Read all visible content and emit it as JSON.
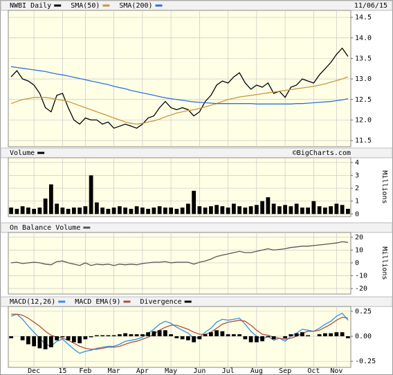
{
  "chart_data": [
    {
      "type": "line",
      "date_label": "11/06/15",
      "ylim": [
        11.35,
        14.67
      ],
      "yticks": [
        11.5,
        {
          "value": 12,
          "label": "12.0"
        },
        12.5,
        {
          "value": 13,
          "label": "13.0"
        },
        13.5,
        {
          "value": 14,
          "label": "14.0"
        },
        14.5
      ],
      "grid": true,
      "series": [
        {
          "name": "NWBI Daily",
          "color": "#000000",
          "values": [
            13.05,
            13.2,
            13.0,
            12.95,
            12.85,
            12.65,
            12.3,
            12.2,
            12.6,
            12.65,
            12.3,
            12.0,
            11.9,
            12.05,
            12.0,
            12.0,
            11.9,
            11.95,
            11.8,
            11.85,
            11.9,
            11.85,
            11.8,
            11.9,
            12.05,
            12.1,
            12.3,
            12.45,
            12.3,
            12.25,
            12.3,
            12.25,
            12.1,
            12.2,
            12.45,
            12.6,
            12.85,
            12.95,
            12.9,
            13.05,
            13.15,
            12.9,
            12.75,
            12.85,
            12.8,
            12.9,
            12.65,
            12.7,
            12.55,
            12.8,
            12.85,
            13.0,
            12.95,
            12.9,
            13.1,
            13.25,
            13.4,
            13.6,
            13.75,
            13.55
          ]
        },
        {
          "name": "SMA(50)",
          "color": "#c8963c",
          "values": [
            12.4,
            12.45,
            12.5,
            12.52,
            12.55,
            12.55,
            12.55,
            12.53,
            12.5,
            12.48,
            12.45,
            12.4,
            12.35,
            12.3,
            12.25,
            12.2,
            12.15,
            12.1,
            12.05,
            12.0,
            11.95,
            11.92,
            11.9,
            11.92,
            11.95,
            11.98,
            12.02,
            12.08,
            12.12,
            12.17,
            12.2,
            12.23,
            12.25,
            12.28,
            12.32,
            12.36,
            12.4,
            12.45,
            12.5,
            12.53,
            12.56,
            12.58,
            12.6,
            12.62,
            12.64,
            12.66,
            12.68,
            12.7,
            12.72,
            12.74,
            12.76,
            12.78,
            12.8,
            12.82,
            12.85,
            12.88,
            12.92,
            12.96,
            13.0,
            13.05
          ]
        },
        {
          "name": "SMA(200)",
          "color": "#2f6fdc",
          "values": [
            13.3,
            13.28,
            13.26,
            13.24,
            13.22,
            13.2,
            13.18,
            13.15,
            13.12,
            13.1,
            13.07,
            13.04,
            13.01,
            12.98,
            12.95,
            12.92,
            12.89,
            12.86,
            12.82,
            12.79,
            12.76,
            12.72,
            12.69,
            12.66,
            12.63,
            12.6,
            12.57,
            12.54,
            12.52,
            12.5,
            12.48,
            12.46,
            12.44,
            12.43,
            12.42,
            12.41,
            12.4,
            12.4,
            12.4,
            12.4,
            12.4,
            12.4,
            12.4,
            12.39,
            12.39,
            12.39,
            12.39,
            12.39,
            12.39,
            12.39,
            12.4,
            12.4,
            12.41,
            12.42,
            12.43,
            12.44,
            12.45,
            12.47,
            12.49,
            12.52
          ]
        }
      ]
    },
    {
      "type": "bar",
      "credit": "©BigCharts.com",
      "y_label": "Millions",
      "ylim": [
        -0.2,
        4.37
      ],
      "yticks": [
        0,
        1,
        2,
        3,
        4
      ],
      "grid": true,
      "series": [
        {
          "name": "Volume",
          "color": "#000000",
          "values": [
            0.5,
            0.4,
            0.6,
            0.5,
            0.4,
            0.5,
            1.2,
            2.3,
            0.8,
            0.5,
            0.4,
            0.5,
            0.5,
            0.6,
            3.0,
            0.9,
            0.5,
            0.4,
            0.5,
            0.6,
            0.5,
            0.4,
            0.6,
            0.5,
            0.4,
            0.5,
            0.6,
            0.5,
            0.5,
            0.4,
            0.5,
            0.8,
            1.8,
            0.6,
            0.5,
            0.6,
            0.7,
            0.6,
            0.5,
            0.8,
            0.6,
            0.5,
            0.6,
            0.7,
            1.0,
            1.3,
            0.8,
            0.6,
            0.7,
            0.6,
            0.8,
            0.5,
            0.5,
            1.0,
            0.6,
            0.5,
            0.6,
            0.8,
            0.7,
            0.4
          ]
        }
      ]
    },
    {
      "type": "line",
      "y_label": "Millions",
      "ylim": [
        -24.3,
        23.7
      ],
      "yticks": [
        -20,
        -10,
        0,
        10,
        20
      ],
      "grid": true,
      "series": [
        {
          "name": "On Balance Volume",
          "color": "#555555",
          "values": [
            0,
            0.5,
            -0.5,
            0,
            0.5,
            0,
            -1,
            -1.5,
            1,
            1.5,
            0,
            -1,
            -2,
            0,
            -2,
            -1,
            -1.5,
            -1,
            -2,
            -1,
            -1.5,
            -1,
            -1.5,
            -0.5,
            0,
            0.5,
            0.5,
            1,
            0,
            0.5,
            0.5,
            0.5,
            -1,
            0.5,
            1.5,
            3,
            5,
            6,
            7,
            8,
            9,
            8,
            8,
            9,
            10,
            11,
            10,
            10.5,
            11,
            12,
            12.5,
            13,
            13,
            13.5,
            14,
            14.5,
            15,
            15.5,
            16.5,
            16
          ]
        }
      ]
    },
    {
      "type": "line",
      "ylim": [
        -0.311,
        0.297
      ],
      "yticks": [
        -0.25,
        {
          "value": 0,
          "label": "0.00"
        },
        0.25
      ],
      "grid": true,
      "categories": [
        null,
        null,
        null,
        null,
        "Dec",
        null,
        null,
        null,
        null,
        "15",
        null,
        null,
        null,
        "Feb",
        null,
        null,
        null,
        null,
        "Mar",
        null,
        null,
        null,
        null,
        "Apr",
        null,
        null,
        null,
        null,
        "May",
        null,
        null,
        null,
        null,
        "Jun",
        null,
        null,
        null,
        null,
        "Jul",
        null,
        null,
        null,
        null,
        "Aug",
        null,
        null,
        null,
        null,
        "Sep",
        null,
        null,
        null,
        null,
        "Oct",
        null,
        null,
        null,
        "Nov",
        null,
        null
      ],
      "series": [
        {
          "name": "MACD(12,26)",
          "color": "#2f8fe8",
          "values": [
            0.2,
            0.22,
            0.17,
            0.1,
            0.04,
            -0.02,
            -0.08,
            -0.1,
            -0.05,
            -0.03,
            -0.08,
            -0.13,
            -0.17,
            -0.15,
            -0.14,
            -0.12,
            -0.11,
            -0.1,
            -0.1,
            -0.08,
            -0.05,
            -0.04,
            -0.03,
            -0.01,
            0.03,
            0.07,
            0.12,
            0.15,
            0.13,
            0.09,
            0.06,
            0.03,
            -0.02,
            -0.01,
            0.04,
            0.08,
            0.14,
            0.17,
            0.16,
            0.17,
            0.18,
            0.12,
            0.05,
            0.0,
            -0.03,
            0.0,
            -0.04,
            -0.02,
            -0.05,
            0.0,
            0.03,
            0.07,
            0.06,
            0.05,
            0.08,
            0.12,
            0.15,
            0.2,
            0.23,
            0.16
          ]
        },
        {
          "name": "MACD EMA(9)",
          "color": "#b0503c",
          "values": [
            0.22,
            0.22,
            0.21,
            0.18,
            0.14,
            0.1,
            0.05,
            0.01,
            -0.01,
            -0.02,
            -0.04,
            -0.07,
            -0.1,
            -0.12,
            -0.13,
            -0.13,
            -0.12,
            -0.11,
            -0.11,
            -0.1,
            -0.08,
            -0.06,
            -0.05,
            -0.03,
            -0.01,
            0.02,
            0.06,
            0.09,
            0.11,
            0.11,
            0.09,
            0.07,
            0.04,
            0.02,
            0.02,
            0.04,
            0.08,
            0.12,
            0.14,
            0.15,
            0.16,
            0.15,
            0.11,
            0.06,
            0.02,
            0.01,
            -0.01,
            -0.02,
            -0.03,
            -0.02,
            0.0,
            0.03,
            0.05,
            0.05,
            0.06,
            0.09,
            0.12,
            0.16,
            0.19,
            0.18
          ]
        },
        {
          "name": "Divergence",
          "color": "#000000",
          "type": "bar",
          "values": [
            -0.02,
            0,
            -0.04,
            -0.08,
            -0.1,
            -0.12,
            -0.13,
            -0.11,
            -0.04,
            -0.01,
            -0.04,
            -0.06,
            -0.07,
            -0.03,
            -0.01,
            0.01,
            0.01,
            0.01,
            0.01,
            0.02,
            0.03,
            0.02,
            0.02,
            0.02,
            0.04,
            0.05,
            0.06,
            0.06,
            0.02,
            -0.02,
            -0.03,
            -0.04,
            -0.06,
            -0.03,
            0.02,
            0.04,
            0.06,
            0.05,
            0.02,
            0.02,
            0.02,
            -0.03,
            -0.06,
            -0.06,
            -0.05,
            -0.01,
            -0.03,
            0,
            -0.02,
            0.02,
            0.03,
            0.04,
            0.01,
            0,
            0.02,
            0.03,
            0.03,
            0.04,
            0.04,
            -0.02
          ]
        }
      ]
    }
  ]
}
